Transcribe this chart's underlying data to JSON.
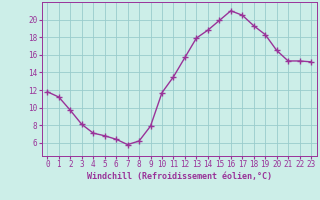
{
  "x": [
    0,
    1,
    2,
    3,
    4,
    5,
    6,
    7,
    8,
    9,
    10,
    11,
    12,
    13,
    14,
    15,
    16,
    17,
    18,
    19,
    20,
    21,
    22,
    23
  ],
  "y": [
    11.8,
    11.2,
    9.7,
    8.1,
    7.1,
    6.8,
    6.4,
    5.8,
    6.2,
    7.9,
    11.7,
    13.5,
    15.7,
    17.9,
    18.8,
    19.9,
    21.0,
    20.5,
    19.3,
    18.3,
    16.5,
    15.3,
    15.3,
    15.2
  ],
  "line_color": "#993399",
  "marker": "+",
  "marker_size": 4,
  "marker_lw": 1.0,
  "line_width": 1.0,
  "bg_color": "#cceee8",
  "grid_color": "#99cccc",
  "xlabel": "Windchill (Refroidissement éolien,°C)",
  "xlabel_color": "#993399",
  "tick_color": "#993399",
  "label_color": "#993399",
  "ylim": [
    4.5,
    22.0
  ],
  "xlim": [
    -0.5,
    23.5
  ],
  "yticks": [
    6,
    8,
    10,
    12,
    14,
    16,
    18,
    20
  ],
  "xticks": [
    0,
    1,
    2,
    3,
    4,
    5,
    6,
    7,
    8,
    9,
    10,
    11,
    12,
    13,
    14,
    15,
    16,
    17,
    18,
    19,
    20,
    21,
    22,
    23
  ],
  "tick_fontsize": 5.5,
  "xlabel_fontsize": 6.0
}
